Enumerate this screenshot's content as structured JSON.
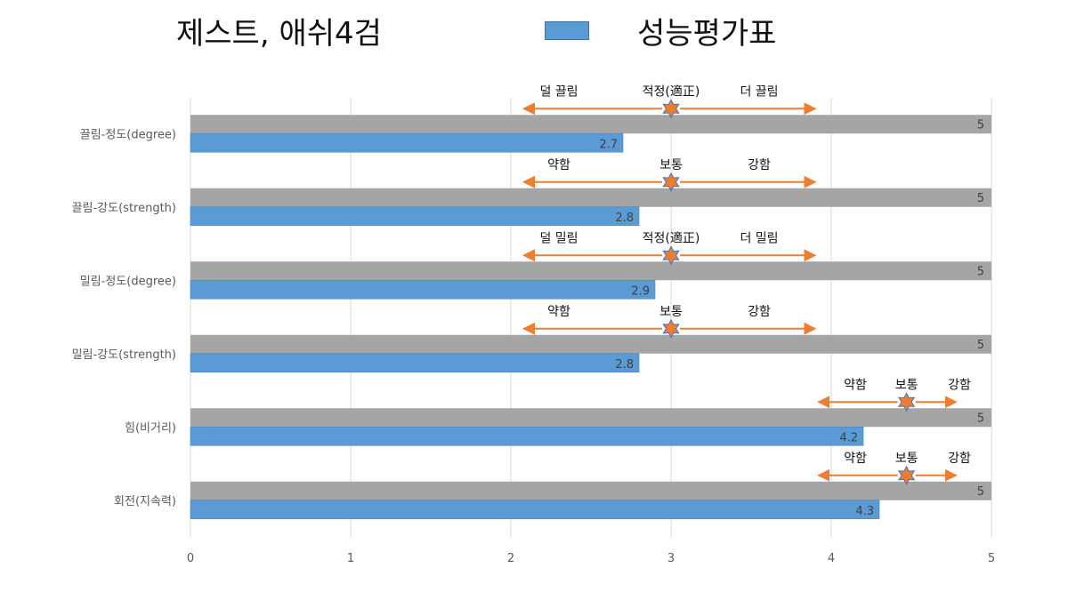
{
  "header": {
    "title": "제스트, 애쉬4검"
  },
  "legend": {
    "label": "성능평가표",
    "color": "#5b9bd5"
  },
  "colors": {
    "max_bar": "#a5a5a5",
    "score_bar": "#5b9bd5",
    "arrow": "#ed7d31",
    "star": "#ed7d31"
  },
  "chart_data": {
    "type": "bar",
    "orientation": "horizontal",
    "title": "제스트, 애쉬4검",
    "categories": [
      "끌림-정도(degree)",
      "끌림-강도(strength)",
      "밀림-정도(degree)",
      "밀림-강도(strength)",
      "힘(비거리)",
      "회전(지속력)"
    ],
    "x_ticks": [
      "0",
      "1",
      "2",
      "3",
      "4",
      "5"
    ],
    "xlim": [
      0,
      5
    ],
    "grid": true,
    "legend_position": "top-right",
    "series": [
      {
        "values": [
          5,
          5,
          5,
          5,
          5,
          5
        ],
        "labels": [
          "5",
          "5",
          "5",
          "5",
          "5",
          "5"
        ]
      },
      {
        "name": "성능평가표",
        "values": [
          2.7,
          2.8,
          2.9,
          2.8,
          4.2,
          4.3
        ],
        "labels": [
          "2.7",
          "2.8",
          "2.9",
          "2.8",
          "4.2",
          "4.3"
        ]
      }
    ],
    "annotations": [
      {
        "left": "덜 끌림",
        "center": "적정(適正)",
        "right": "더 끌림",
        "marker": 3.0,
        "from": 2.08,
        "to": 3.9
      },
      {
        "left": "약함",
        "center": "보통",
        "right": "강함",
        "marker": 3.0,
        "from": 2.08,
        "to": 3.9
      },
      {
        "left": "덜 밀림",
        "center": "적정(適正)",
        "right": "더 밀림",
        "marker": 3.0,
        "from": 2.08,
        "to": 3.9
      },
      {
        "left": "약함",
        "center": "보통",
        "right": "강함",
        "marker": 3.0,
        "from": 2.08,
        "to": 3.9
      },
      {
        "left": "약함",
        "center": "보통",
        "right": "강함",
        "marker": 4.47,
        "from": 3.92,
        "to": 4.78
      },
      {
        "left": "약함",
        "center": "보통",
        "right": "강함",
        "marker": 4.47,
        "from": 3.92,
        "to": 4.78
      }
    ]
  }
}
